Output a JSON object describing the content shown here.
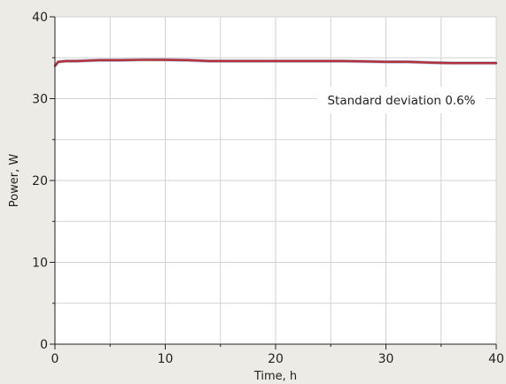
{
  "chart_data": {
    "type": "line",
    "xlabel": "Time, h",
    "ylabel": "Power, W",
    "xlim": [
      0,
      40
    ],
    "ylim": [
      0,
      40
    ],
    "xticks": [
      0,
      10,
      20,
      30,
      40
    ],
    "yticks": [
      0,
      10,
      20,
      30,
      40
    ],
    "grid": true,
    "annotation": "Standard deviation 0.6%",
    "colors": {
      "mean_line": "#b0303c",
      "raw_band": "#7a8fb8",
      "grid": "#d2d2d2",
      "plot_bg": "#ffffff",
      "page_bg": "#ecebe6"
    },
    "series": [
      {
        "x": [
          0,
          0.3,
          1,
          2,
          4,
          6,
          8,
          10,
          12,
          14,
          16,
          18,
          20,
          22,
          24,
          26,
          28,
          30,
          32,
          34,
          36,
          38,
          40
        ],
        "y": [
          34.0,
          34.5,
          34.6,
          34.6,
          34.7,
          34.7,
          34.75,
          34.75,
          34.7,
          34.6,
          34.6,
          34.6,
          34.6,
          34.6,
          34.6,
          34.6,
          34.55,
          34.5,
          34.5,
          34.4,
          34.35,
          34.35,
          34.35
        ]
      }
    ]
  }
}
